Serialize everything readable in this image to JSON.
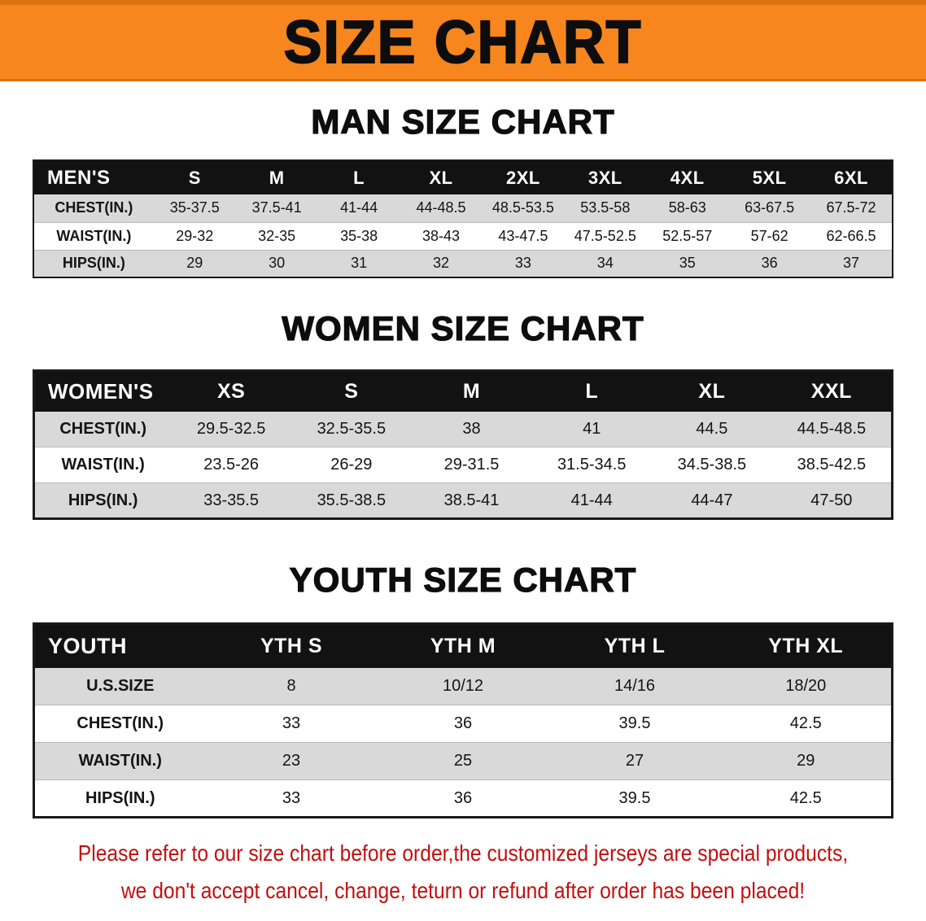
{
  "page": {
    "banner_title": "SIZE CHART"
  },
  "colors": {
    "banner-orange": "#F6861D",
    "banner-orange-dark": "#DD7414",
    "header-black": "#121212",
    "row-gray": "#D9D9D9",
    "disclaimer-red": "#C40E0E"
  },
  "sections": [
    {
      "heading": "MAN SIZE CHART",
      "table": {
        "header": [
          "MEN'S",
          "S",
          "M",
          "L",
          "XL",
          "2XL",
          "3XL",
          "4XL",
          "5XL",
          "6XL"
        ],
        "rows": [
          {
            "label": "CHEST(IN.)",
            "values": [
              "35-37.5",
              "37.5-41",
              "41-44",
              "44-48.5",
              "48.5-53.5",
              "53.5-58",
              "58-63",
              "63-67.5",
              "67.5-72"
            ]
          },
          {
            "label": "WAIST(IN.)",
            "values": [
              "29-32",
              "32-35",
              "35-38",
              "38-43",
              "43-47.5",
              "47.5-52.5",
              "52.5-57",
              "57-62",
              "62-66.5"
            ]
          },
          {
            "label": "HIPS(IN.)",
            "values": [
              "29",
              "30",
              "31",
              "32",
              "33",
              "34",
              "35",
              "36",
              "37"
            ]
          }
        ]
      }
    },
    {
      "heading": "WOMEN SIZE CHART",
      "table": {
        "header": [
          "WOMEN'S",
          "XS",
          "S",
          "M",
          "L",
          "XL",
          "XXL"
        ],
        "rows": [
          {
            "label": "CHEST(IN.)",
            "values": [
              "29.5-32.5",
              "32.5-35.5",
              "38",
              "41",
              "44.5",
              "44.5-48.5"
            ]
          },
          {
            "label": "WAIST(IN.)",
            "values": [
              "23.5-26",
              "26-29",
              "29-31.5",
              "31.5-34.5",
              "34.5-38.5",
              "38.5-42.5"
            ]
          },
          {
            "label": "HIPS(IN.)",
            "values": [
              "33-35.5",
              "35.5-38.5",
              "38.5-41",
              "41-44",
              "44-47",
              "47-50"
            ]
          }
        ]
      }
    },
    {
      "heading": "YOUTH SIZE CHART",
      "table": {
        "header": [
          "YOUTH",
          "YTH S",
          "YTH M",
          "YTH L",
          "YTH XL"
        ],
        "rows": [
          {
            "label": "U.S.SIZE",
            "values": [
              "8",
              "10/12",
              "14/16",
              "18/20"
            ]
          },
          {
            "label": "CHEST(IN.)",
            "values": [
              "33",
              "36",
              "39.5",
              "42.5"
            ]
          },
          {
            "label": "WAIST(IN.)",
            "values": [
              "23",
              "25",
              "27",
              "29"
            ]
          },
          {
            "label": "HIPS(IN.)",
            "values": [
              "33",
              "36",
              "39.5",
              "42.5"
            ]
          }
        ]
      }
    }
  ],
  "disclaimer": {
    "line1": "Please refer to our size chart before order,the customized jerseys are special products,",
    "line2": "we don't accept cancel, change, teturn or refund after order has been placed!"
  }
}
